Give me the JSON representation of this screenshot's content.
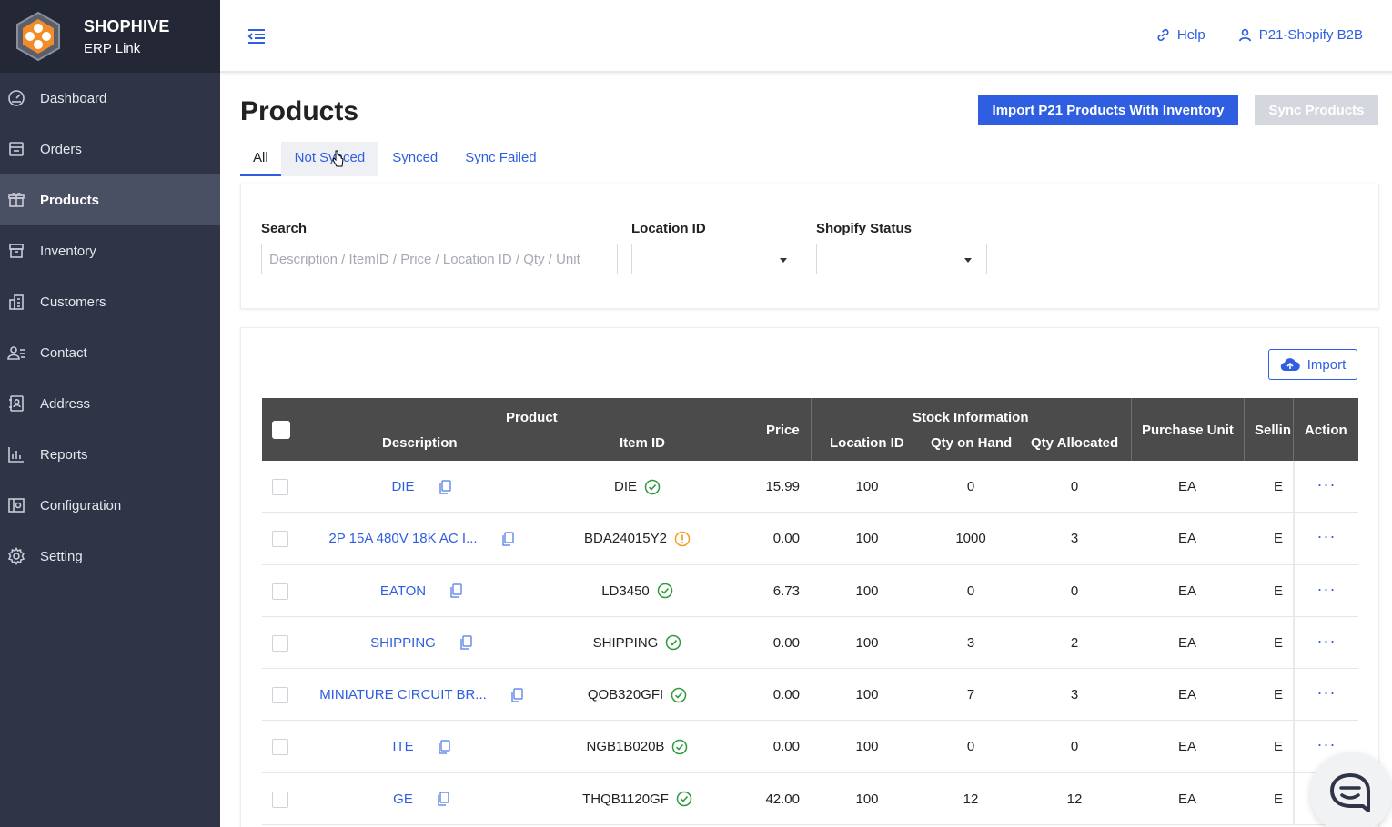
{
  "brand": {
    "title": "SHOPHIVE",
    "subtitle": "ERP Link"
  },
  "sidebar": {
    "items": [
      {
        "label": "Dashboard",
        "icon": "dashboard-icon",
        "active": false
      },
      {
        "label": "Orders",
        "icon": "orders-icon",
        "active": false
      },
      {
        "label": "Products",
        "icon": "products-icon",
        "active": true
      },
      {
        "label": "Inventory",
        "icon": "inventory-icon",
        "active": false
      },
      {
        "label": "Customers",
        "icon": "customers-icon",
        "active": false
      },
      {
        "label": "Contact",
        "icon": "contact-icon",
        "active": false
      },
      {
        "label": "Address",
        "icon": "address-icon",
        "active": false
      },
      {
        "label": "Reports",
        "icon": "reports-icon",
        "active": false
      },
      {
        "label": "Configuration",
        "icon": "configuration-icon",
        "active": false
      },
      {
        "label": "Setting",
        "icon": "setting-icon",
        "active": false
      }
    ]
  },
  "topbar": {
    "help_label": "Help",
    "account_label": "P21-Shopify B2B"
  },
  "page": {
    "title": "Products",
    "import_inventory_label": "Import P21 Products With Inventory",
    "sync_label": "Sync Products"
  },
  "tabs": [
    {
      "label": "All",
      "active": true
    },
    {
      "label": "Not Synced",
      "active": false
    },
    {
      "label": "Synced",
      "active": false
    },
    {
      "label": "Sync Failed",
      "active": false
    }
  ],
  "filters": {
    "search_label": "Search",
    "search_placeholder": "Description / ItemID / Price / Location ID / Qty / Unit",
    "search_value": "",
    "location_label": "Location ID",
    "location_value": "",
    "status_label": "Shopify Status",
    "status_value": ""
  },
  "table": {
    "import_label": "Import",
    "headers": {
      "product_group": "Product",
      "description": "Description",
      "item_id": "Item ID",
      "price": "Price",
      "stock_group": "Stock Information",
      "location_id": "Location ID",
      "qty_on_hand": "Qty on Hand",
      "qty_allocated": "Qty Allocated",
      "purchase_unit": "Purchase Unit",
      "selling_unit": "Selling",
      "action": "Action"
    },
    "rows": [
      {
        "description": "DIE",
        "item_id": "DIE",
        "status": "synced",
        "price": "15.99",
        "location_id": "100",
        "qty_on_hand": "0",
        "qty_allocated": "0",
        "purchase_unit": "EA",
        "selling_unit": "EA"
      },
      {
        "description": "2P 15A 480V 18K AC I...",
        "item_id": "BDA24015Y2",
        "status": "warning",
        "price": "0.00",
        "location_id": "100",
        "qty_on_hand": "1000",
        "qty_allocated": "3",
        "purchase_unit": "EA",
        "selling_unit": "EA"
      },
      {
        "description": "EATON",
        "item_id": "LD3450",
        "status": "synced",
        "price": "6.73",
        "location_id": "100",
        "qty_on_hand": "0",
        "qty_allocated": "0",
        "purchase_unit": "EA",
        "selling_unit": "EA"
      },
      {
        "description": "SHIPPING",
        "item_id": "SHIPPING",
        "status": "synced",
        "price": "0.00",
        "location_id": "100",
        "qty_on_hand": "3",
        "qty_allocated": "2",
        "purchase_unit": "EA",
        "selling_unit": "EA"
      },
      {
        "description": "MINIATURE CIRCUIT BR...",
        "item_id": "QOB320GFI",
        "status": "synced",
        "price": "0.00",
        "location_id": "100",
        "qty_on_hand": "7",
        "qty_allocated": "3",
        "purchase_unit": "EA",
        "selling_unit": "EA"
      },
      {
        "description": "ITE",
        "item_id": "NGB1B020B",
        "status": "synced",
        "price": "0.00",
        "location_id": "100",
        "qty_on_hand": "0",
        "qty_allocated": "0",
        "purchase_unit": "EA",
        "selling_unit": "EA"
      },
      {
        "description": "GE",
        "item_id": "THQB1120GF",
        "status": "synced",
        "price": "42.00",
        "location_id": "100",
        "qty_on_hand": "12",
        "qty_allocated": "12",
        "purchase_unit": "EA",
        "selling_unit": "EA"
      }
    ],
    "action_symbol": "···"
  },
  "colors": {
    "accent": "#2f5fe0",
    "sidebar_bg": "#2f3447",
    "synced": "#2e9a3e",
    "warning": "#f0a020",
    "header_bg": "#4b4b4b"
  }
}
